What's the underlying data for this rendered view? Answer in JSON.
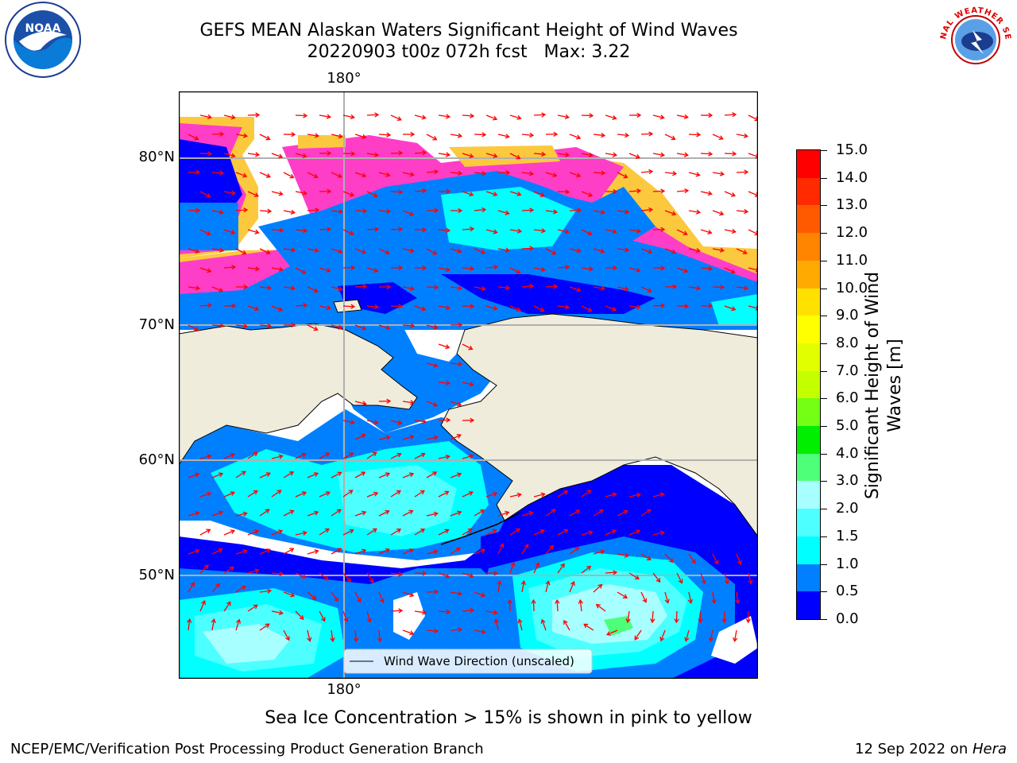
{
  "title": {
    "line1": "GEFS MEAN Alaskan Waters Significant Height of Wind Waves",
    "line2": "20220903 t00z 072h fcst   Max: 3.22"
  },
  "logos": {
    "left_text": "NOAA",
    "right_text": "NATIONAL WEATHER SERVICE"
  },
  "map": {
    "lat_labels": [
      "80°N",
      "70°N",
      "60°N",
      "50°N"
    ],
    "lon_label_top": "180°",
    "lon_label_bottom": "180°",
    "legend_label": "Wind Wave Direction (unscaled)",
    "colors": {
      "land": "#efecdc",
      "ice_yellow": "#fcc93e",
      "ice_pink": "#ff3ec8",
      "wave_0": "#0000ff",
      "wave_05": "#0080ff",
      "wave_1": "#00ffff",
      "wave_15": "#4dffff",
      "wave_2": "#a8ffff",
      "arrow": "#ff0000"
    }
  },
  "colorbar": {
    "title_line1": "Significant Height of Wind",
    "title_line2": "Waves [m]",
    "ticks": [
      "15.0",
      "14.0",
      "13.0",
      "12.0",
      "11.0",
      "10.0",
      "9.0",
      "8.0",
      "7.0",
      "6.0",
      "5.0",
      "4.0",
      "3.0",
      "2.0",
      "1.5",
      "1.0",
      "0.5",
      "0.0"
    ],
    "colors_top_to_bottom": [
      "#ff0000",
      "#ff2a00",
      "#ff5a00",
      "#ff8400",
      "#ffaa00",
      "#ffe100",
      "#ffff00",
      "#e2ff00",
      "#c4ff00",
      "#74ff14",
      "#00ee00",
      "#4dff79",
      "#a8ffff",
      "#4dffff",
      "#00ffff",
      "#0080ff",
      "#0000ff"
    ]
  },
  "notes": {
    "ice": "Sea Ice Concentration > 15% is shown in pink to yellow",
    "footer_left": "NCEP/EMC/Verification Post Processing Product Generation Branch",
    "footer_date": "12 Sep 2022 on ",
    "footer_machine": "Hera"
  }
}
